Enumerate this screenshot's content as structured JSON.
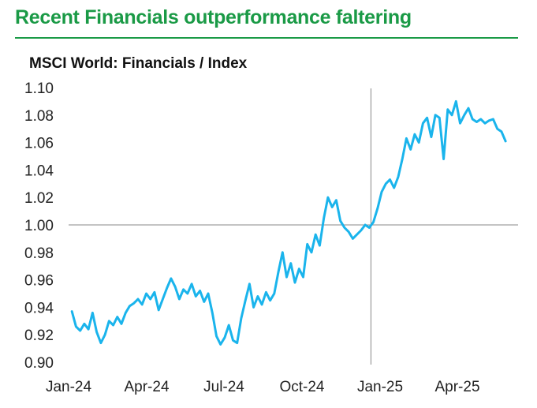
{
  "title": "Recent Financials outperformance faltering",
  "colors": {
    "title": "#1a9a46",
    "line": "#1ab4ec",
    "refline": "#888888",
    "text": "#222222"
  },
  "chart_data": {
    "type": "line",
    "subtitle": "MSCI World: Financials / Index",
    "ylim": [
      0.9,
      1.1
    ],
    "yticks": [
      "0.90",
      "0.92",
      "0.94",
      "0.96",
      "0.98",
      "1.00",
      "1.02",
      "1.04",
      "1.06",
      "1.08",
      "1.10"
    ],
    "xticks": [
      "Jan-24",
      "Apr-24",
      "Jul-24",
      "Oct-24",
      "Jan-25",
      "Apr-25"
    ],
    "reference_lines": {
      "horizontal": 1.0,
      "vertical": "Jan-25"
    },
    "series": [
      {
        "x": [
          "2024-01-05",
          "2024-01-10",
          "2024-01-15",
          "2024-01-20",
          "2024-01-25",
          "2024-01-30",
          "2024-02-04",
          "2024-02-09",
          "2024-02-14",
          "2024-02-19",
          "2024-02-24",
          "2024-02-29",
          "2024-03-05",
          "2024-03-10",
          "2024-03-15",
          "2024-03-20",
          "2024-03-25",
          "2024-03-30",
          "2024-04-04",
          "2024-04-09",
          "2024-04-14",
          "2024-04-19",
          "2024-04-24",
          "2024-04-29",
          "2024-05-04",
          "2024-05-09",
          "2024-05-14",
          "2024-05-19",
          "2024-05-24",
          "2024-05-29",
          "2024-06-03",
          "2024-06-08",
          "2024-06-13",
          "2024-06-18",
          "2024-06-23",
          "2024-06-28",
          "2024-07-03",
          "2024-07-08",
          "2024-07-13",
          "2024-07-18",
          "2024-07-23",
          "2024-07-28",
          "2024-08-02",
          "2024-08-07",
          "2024-08-12",
          "2024-08-17",
          "2024-08-22",
          "2024-08-27",
          "2024-09-01",
          "2024-09-06",
          "2024-09-11",
          "2024-09-16",
          "2024-09-21",
          "2024-09-26",
          "2024-10-01",
          "2024-10-06",
          "2024-10-11",
          "2024-10-16",
          "2024-10-21",
          "2024-10-26",
          "2024-10-31",
          "2024-11-05",
          "2024-11-10",
          "2024-11-15",
          "2024-11-20",
          "2024-11-25",
          "2024-11-30",
          "2024-12-05",
          "2024-12-10",
          "2024-12-15",
          "2024-12-20",
          "2024-12-25",
          "2024-12-30",
          "2025-01-04",
          "2025-01-09",
          "2025-01-14",
          "2025-01-19",
          "2025-01-24",
          "2025-01-29",
          "2025-02-03",
          "2025-02-08",
          "2025-02-13",
          "2025-02-18",
          "2025-02-23",
          "2025-02-28",
          "2025-03-05",
          "2025-03-10",
          "2025-03-15",
          "2025-03-20",
          "2025-03-25",
          "2025-03-30",
          "2025-04-04",
          "2025-04-09",
          "2025-04-14",
          "2025-04-19",
          "2025-04-24",
          "2025-04-29",
          "2025-05-04",
          "2025-05-09",
          "2025-05-14",
          "2025-05-19",
          "2025-05-24",
          "2025-05-29",
          "2025-06-03",
          "2025-06-08",
          "2025-06-13"
        ],
        "values": [
          0.937,
          0.926,
          0.923,
          0.928,
          0.924,
          0.936,
          0.922,
          0.914,
          0.92,
          0.93,
          0.927,
          0.933,
          0.928,
          0.936,
          0.941,
          0.943,
          0.946,
          0.942,
          0.95,
          0.946,
          0.951,
          0.938,
          0.946,
          0.954,
          0.961,
          0.955,
          0.946,
          0.953,
          0.95,
          0.957,
          0.948,
          0.952,
          0.944,
          0.95,
          0.936,
          0.919,
          0.913,
          0.918,
          0.927,
          0.916,
          0.914,
          0.932,
          0.945,
          0.957,
          0.94,
          0.948,
          0.942,
          0.951,
          0.945,
          0.95,
          0.966,
          0.98,
          0.962,
          0.972,
          0.958,
          0.968,
          0.962,
          0.986,
          0.98,
          0.993,
          0.985,
          1.005,
          1.02,
          1.013,
          1.018,
          1.003,
          0.998,
          0.995,
          0.99,
          0.993,
          0.996,
          1.0,
          0.998,
          1.002,
          1.012,
          1.024,
          1.03,
          1.033,
          1.027,
          1.035,
          1.048,
          1.063,
          1.055,
          1.066,
          1.06,
          1.074,
          1.078,
          1.064,
          1.08,
          1.078,
          1.048,
          1.084,
          1.08,
          1.09,
          1.074,
          1.08,
          1.085,
          1.077,
          1.075,
          1.077,
          1.074,
          1.076,
          1.077,
          1.07,
          1.068,
          1.061
        ]
      }
    ]
  }
}
